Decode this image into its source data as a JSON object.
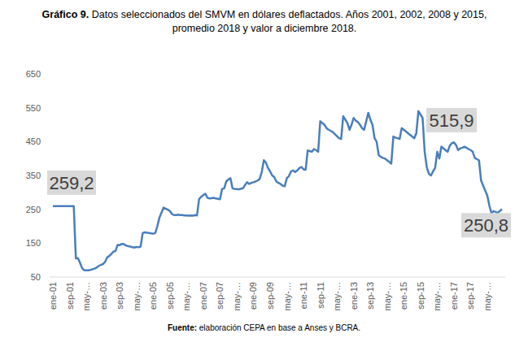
{
  "chart_data": {
    "type": "line",
    "title_label": "Gráfico 9.",
    "title": " Datos seleccionados del SMVM en dólares deflactados. Años 2001, 2002, 2008 y 2015, promedio 2018 y valor a diciembre 2018.",
    "source_label": "Fuente:",
    "source": " elaboración CEPA en base a Anses y BCRA.",
    "color": "#4a7ebb",
    "grid": false,
    "ylim": [
      50,
      650
    ],
    "yticks": [
      50,
      150,
      250,
      350,
      450,
      550,
      650
    ],
    "annotations": [
      {
        "text": "259,2",
        "value": 259.2
      },
      {
        "text": "515,9",
        "value": 515.9
      },
      {
        "text": "250,8",
        "value": 250.8
      }
    ],
    "categories": [
      "ene-01",
      null,
      null,
      null,
      null,
      null,
      null,
      null,
      "sep-01",
      null,
      null,
      null,
      null,
      null,
      null,
      null,
      "may-…",
      null,
      null,
      null,
      null,
      null,
      null,
      null,
      "ene-03",
      null,
      null,
      null,
      null,
      null,
      null,
      null,
      "sep-03",
      null,
      null,
      null,
      null,
      null,
      null,
      null,
      "may-…",
      null,
      null,
      null,
      null,
      null,
      null,
      null,
      "ene-05",
      null,
      null,
      null,
      null,
      null,
      null,
      null,
      "sep-05",
      null,
      null,
      null,
      null,
      null,
      null,
      null,
      "may-…",
      null,
      null,
      null,
      null,
      null,
      null,
      null,
      "ene-07",
      null,
      null,
      null,
      null,
      null,
      null,
      null,
      "sep-07",
      null,
      null,
      null,
      null,
      null,
      null,
      null,
      "may-…",
      null,
      null,
      null,
      null,
      null,
      null,
      null,
      "ene-09",
      null,
      null,
      null,
      null,
      null,
      null,
      null,
      "sep-09",
      null,
      null,
      null,
      null,
      null,
      null,
      null,
      "may-…",
      null,
      null,
      null,
      null,
      null,
      null,
      null,
      "ene-11",
      null,
      null,
      null,
      null,
      null,
      null,
      null,
      "sep-11",
      null,
      null,
      null,
      null,
      null,
      null,
      null,
      "may-…",
      null,
      null,
      null,
      null,
      null,
      null,
      null,
      "ene-13",
      null,
      null,
      null,
      null,
      null,
      null,
      null,
      "sep-13",
      null,
      null,
      null,
      null,
      null,
      null,
      null,
      "may-…",
      null,
      null,
      null,
      null,
      null,
      null,
      null,
      "ene-15",
      null,
      null,
      null,
      null,
      null,
      null,
      null,
      "sep-15",
      null,
      null,
      null,
      null,
      null,
      null,
      null,
      "may-…",
      null,
      null,
      null,
      null,
      null,
      null,
      null,
      "ene-17",
      null,
      null,
      null,
      null,
      null,
      null,
      null,
      "sep-17",
      null,
      null,
      null,
      null,
      null,
      null,
      null,
      "may-…",
      null,
      null,
      null,
      null,
      null,
      null,
      null
    ],
    "values": [
      259.2,
      259.2,
      259.2,
      259.2,
      259.2,
      259.2,
      259.2,
      259.2,
      259.2,
      259.2,
      259.2,
      105,
      106,
      92,
      76,
      70,
      70,
      70,
      71,
      73,
      75,
      78,
      83,
      86,
      88,
      95,
      108,
      112,
      118,
      125,
      127,
      145,
      144,
      148,
      147,
      143,
      141,
      140,
      138,
      137,
      139,
      138,
      140,
      180,
      182,
      181,
      180,
      179,
      178,
      180,
      200,
      225,
      240,
      255,
      252,
      249,
      245,
      236,
      233,
      233,
      234,
      233,
      233,
      232,
      232,
      231,
      232,
      231,
      233,
      232,
      280,
      287,
      292,
      296,
      284,
      282,
      283,
      284,
      282,
      281,
      280,
      310,
      312,
      332,
      338,
      342,
      312,
      310,
      310,
      309,
      311,
      312,
      322,
      330,
      325,
      328,
      330,
      332,
      335,
      340,
      360,
      395,
      388,
      372,
      362,
      350,
      345,
      332,
      328,
      325,
      320,
      318,
      342,
      348,
      362,
      365,
      360,
      365,
      372,
      375,
      368,
      367,
      424,
      422,
      420,
      428,
      425,
      420,
      510,
      505,
      500,
      490,
      485,
      482,
      478,
      472,
      466,
      460,
      458,
      525,
      515,
      505,
      485,
      500,
      520,
      512,
      508,
      500,
      490,
      485,
      510,
      535,
      515,
      500,
      460,
      450,
      410,
      405,
      402,
      400,
      395,
      390,
      385,
      465,
      462,
      460,
      458,
      490,
      485,
      480,
      475,
      470,
      465,
      460,
      475,
      540,
      530,
      520,
      420,
      375,
      355,
      350,
      362,
      372,
      420,
      400,
      435,
      430,
      425,
      420,
      438,
      445,
      448,
      440,
      425,
      430,
      432,
      435,
      432,
      428,
      425,
      420,
      402,
      398,
      395,
      335,
      320,
      305,
      290,
      260,
      238,
      245,
      242,
      240,
      245,
      250.8
    ]
  }
}
